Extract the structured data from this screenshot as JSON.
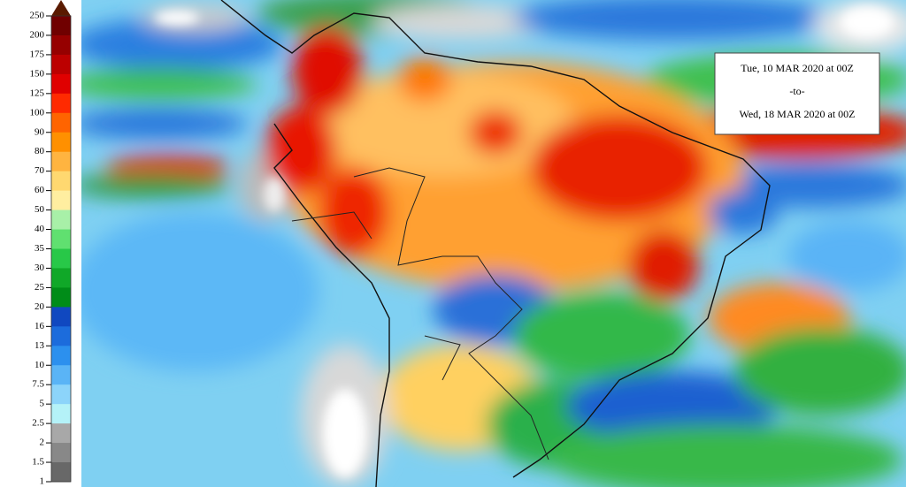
{
  "legend": {
    "levels": [
      250,
      200,
      175,
      150,
      125,
      100,
      90,
      80,
      70,
      60,
      50,
      40,
      35,
      30,
      25,
      20,
      16,
      13,
      10,
      7.5,
      5,
      2.5,
      2,
      1.5,
      1
    ],
    "colors": [
      "#700000",
      "#960000",
      "#bc0000",
      "#e00000",
      "#ff2a00",
      "#ff6400",
      "#ff9000",
      "#ffb440",
      "#ffd870",
      "#ffeea0",
      "#a8f0a8",
      "#60e070",
      "#28c848",
      "#10a828",
      "#008c18",
      "#1048c0",
      "#1c6cdc",
      "#2c90ee",
      "#5ab4f6",
      "#8cd4fa",
      "#b4f2f8",
      "#a8a8a8",
      "#888888",
      "#686868"
    ]
  },
  "date_box": {
    "start": "Tue, 10 MAR 2020 at 00Z",
    "separator": "-to-",
    "end": "Wed, 18 MAR 2020 at 00Z"
  }
}
